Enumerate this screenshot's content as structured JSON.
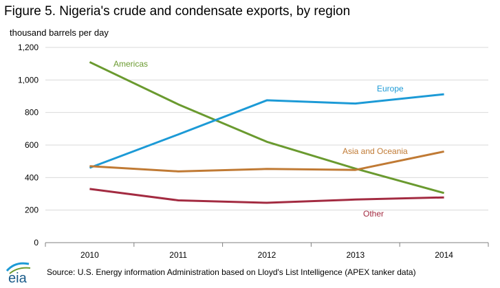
{
  "header": {
    "title": "Figure 5. Nigeria's crude and condensate exports, by region",
    "unit_label": "thousand barrels per day"
  },
  "footer": {
    "source": "Source: U.S. Energy information Administration based on Lloyd's List Intelligence (APEX tanker data)",
    "logo_text": "eia"
  },
  "chart_data": {
    "type": "line",
    "title": "Figure 5. Nigeria's crude and condensate exports, by region",
    "ylabel": "thousand barrels per day",
    "xlabel": "",
    "categories": [
      "2010",
      "2011",
      "2012",
      "2013",
      "2014"
    ],
    "ylim": [
      0,
      1200
    ],
    "yticks": [
      0,
      200,
      400,
      600,
      800,
      1000,
      1200
    ],
    "ytick_labels": [
      "0",
      "200",
      "400",
      "600",
      "800",
      "1,000",
      "1,200"
    ],
    "grid": "horizontal",
    "legend": "inline labels",
    "series": [
      {
        "name": "Americas",
        "color": "#6a9a2f",
        "values": [
          1110,
          850,
          620,
          455,
          305
        ]
      },
      {
        "name": "Europe",
        "color": "#1c9ad6",
        "values": [
          460,
          665,
          875,
          855,
          912
        ]
      },
      {
        "name": "Asia and Oceania",
        "color": "#c07a34",
        "values": [
          470,
          438,
          453,
          447,
          560
        ]
      },
      {
        "name": "Other",
        "color": "#a32b41",
        "values": [
          330,
          260,
          245,
          265,
          278
        ]
      }
    ]
  }
}
